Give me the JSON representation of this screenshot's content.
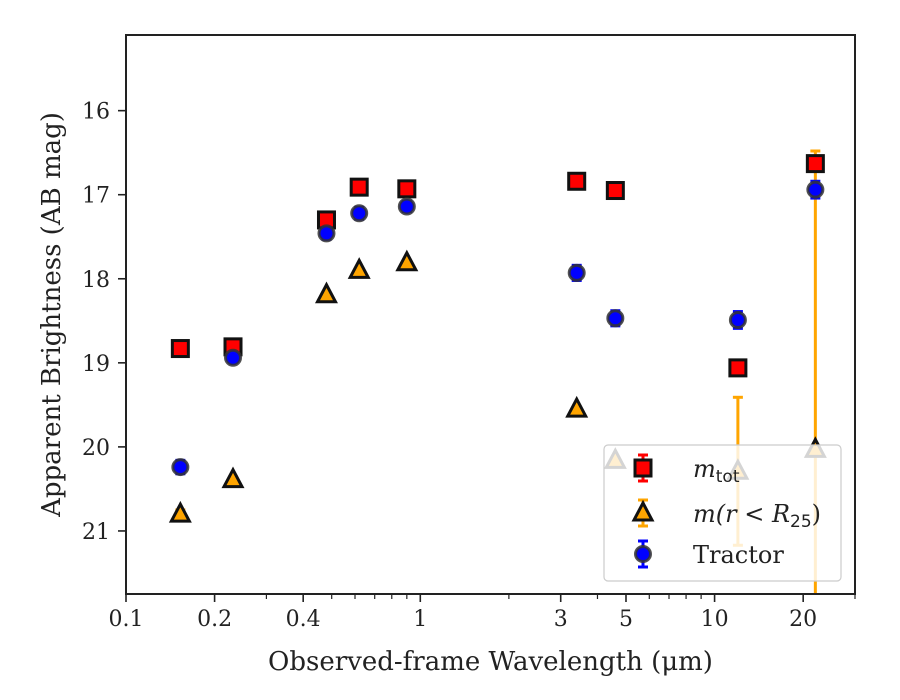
{
  "chart_data": {
    "type": "scatter",
    "xlabel": "Observed-frame Wavelength (μm)",
    "ylabel": "Apparent Brightness (AB mag)",
    "xscale": "log",
    "xlim": [
      0.1,
      30
    ],
    "ylim": [
      21.75,
      15.1
    ],
    "y_inverted": true,
    "grid": false,
    "legend_position": "lower-right",
    "x_ticks_major": [
      {
        "value": 0.1,
        "label": "0.1"
      },
      {
        "value": 0.2,
        "label": "0.2"
      },
      {
        "value": 0.4,
        "label": "0.4"
      },
      {
        "value": 1,
        "label": "1"
      },
      {
        "value": 3,
        "label": "3"
      },
      {
        "value": 5,
        "label": "5"
      },
      {
        "value": 10,
        "label": "10"
      },
      {
        "value": 20,
        "label": "20"
      }
    ],
    "x_ticks_minor": [
      0.3,
      0.5,
      0.6,
      0.7,
      0.8,
      0.9,
      2,
      4,
      6,
      7,
      8,
      9,
      30
    ],
    "y_ticks": [
      {
        "value": 16,
        "label": "16"
      },
      {
        "value": 17,
        "label": "17"
      },
      {
        "value": 18,
        "label": "18"
      },
      {
        "value": 19,
        "label": "19"
      },
      {
        "value": 20,
        "label": "20"
      },
      {
        "value": 21,
        "label": "21"
      }
    ],
    "series": [
      {
        "name": "m_tot",
        "marker": "square",
        "fill": "#ff0000",
        "errcolor": "#ff0000",
        "points": [
          {
            "x": 0.153,
            "y": 18.83,
            "err": 0.03
          },
          {
            "x": 0.231,
            "y": 18.81,
            "err": 0.03
          },
          {
            "x": 0.48,
            "y": 17.3,
            "err": 0.03
          },
          {
            "x": 0.62,
            "y": 16.91,
            "err": 0.03
          },
          {
            "x": 0.9,
            "y": 16.93,
            "err": 0.03
          },
          {
            "x": 3.4,
            "y": 16.84,
            "err": 0.03
          },
          {
            "x": 4.6,
            "y": 16.95,
            "err": 0.03
          },
          {
            "x": 12.0,
            "y": 19.06,
            "err": 0.04
          },
          {
            "x": 22.0,
            "y": 16.63,
            "err": 0.06
          }
        ]
      },
      {
        "name": "m(r<R25)",
        "marker": "triangle",
        "fill": "#ffa500",
        "errcolor": "#ffa500",
        "points": [
          {
            "x": 0.153,
            "y": 20.8,
            "err": 0.05
          },
          {
            "x": 0.231,
            "y": 20.39,
            "err": 0.03
          },
          {
            "x": 0.48,
            "y": 18.19,
            "err": 0.02
          },
          {
            "x": 0.62,
            "y": 17.9,
            "err": 0.02
          },
          {
            "x": 0.9,
            "y": 17.81,
            "err": 0.02
          },
          {
            "x": 3.4,
            "y": 19.55,
            "err": 0.02
          },
          {
            "x": 4.6,
            "y": 20.16,
            "err": 0.02
          },
          {
            "x": 12.0,
            "y": 20.29,
            "err": 0.88
          },
          {
            "x": 22.0,
            "y": 20.03,
            "err": 3.55
          }
        ]
      },
      {
        "name": "Tractor",
        "marker": "circle",
        "fill": "#0000ff",
        "errcolor": "#0000ff",
        "points": [
          {
            "x": 0.153,
            "y": 20.24,
            "err": 0.08
          },
          {
            "x": 0.231,
            "y": 18.94,
            "err": 0.05
          },
          {
            "x": 0.48,
            "y": 17.46,
            "err": 0.07
          },
          {
            "x": 0.62,
            "y": 17.22,
            "err": 0.07
          },
          {
            "x": 0.9,
            "y": 17.14,
            "err": 0.06
          },
          {
            "x": 3.4,
            "y": 17.93,
            "err": 0.09
          },
          {
            "x": 4.6,
            "y": 18.47,
            "err": 0.09
          },
          {
            "x": 12.0,
            "y": 18.49,
            "err": 0.1
          },
          {
            "x": 22.0,
            "y": 16.94,
            "err": 0.1
          }
        ]
      }
    ],
    "legend": [
      {
        "series": 0,
        "label": "m",
        "subscript": "tot",
        "suffix": ""
      },
      {
        "series": 1,
        "label": "m(r < R",
        "subscript": "25",
        "suffix": ")"
      },
      {
        "series": 2,
        "label": "Tractor",
        "subscript": "",
        "suffix": ""
      }
    ]
  }
}
